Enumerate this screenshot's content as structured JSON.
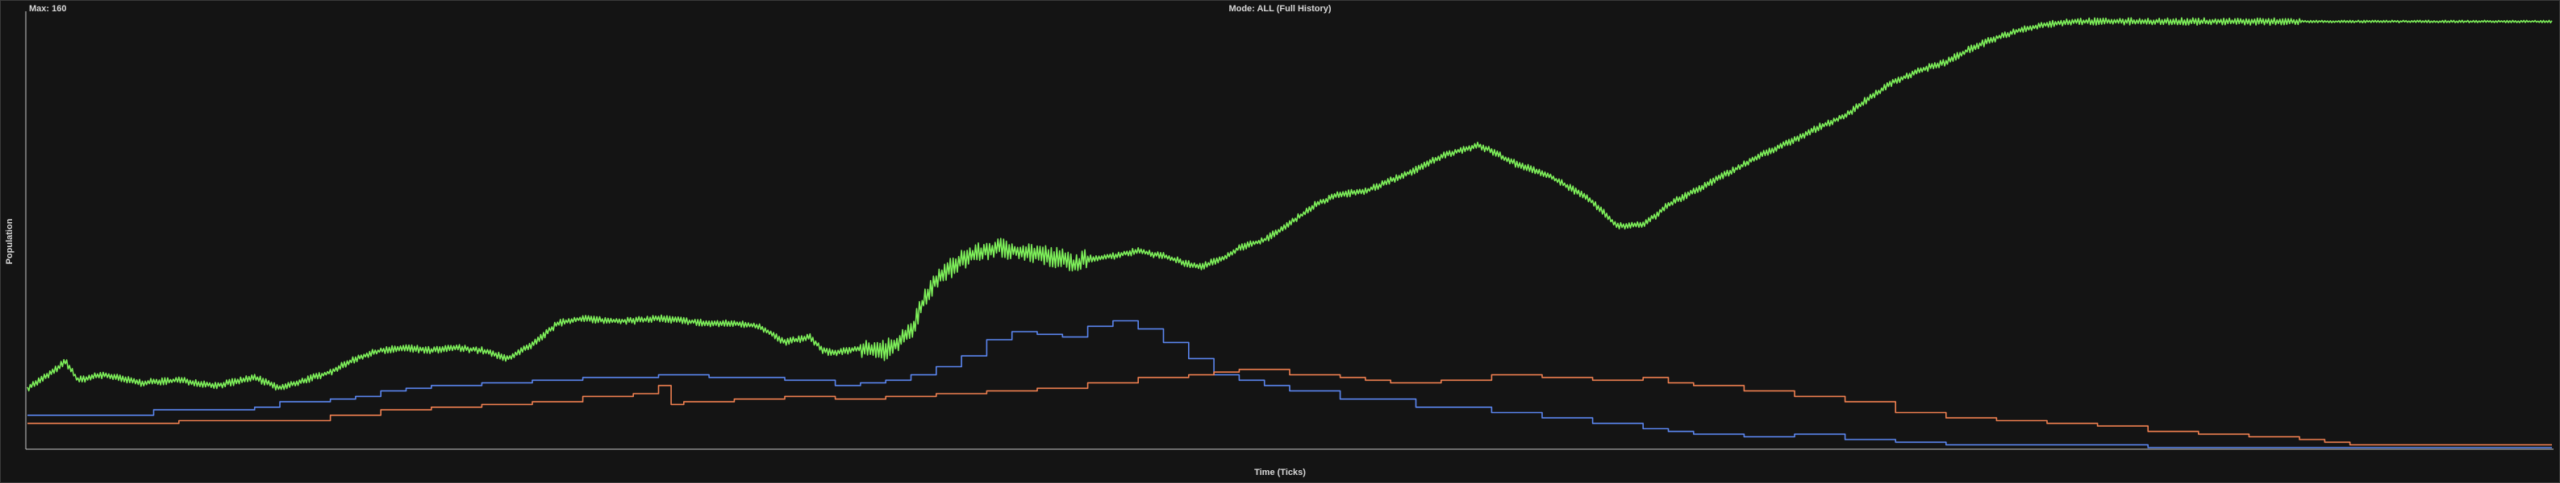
{
  "header": {
    "max_label": "Max: 160",
    "mode_label": "Mode: ALL (Full History)"
  },
  "chart_data": {
    "type": "line",
    "title": "",
    "xlabel": "Time (Ticks)",
    "ylabel": "Population",
    "ymax_label": "Max: 160",
    "ylim": [
      0,
      160
    ],
    "grid": false,
    "legend": "none",
    "x_unit": "fraction of full history (0-1)",
    "series": [
      {
        "color": "#7ef05a",
        "style": "jagged",
        "x": [
          0,
          0.01,
          0.015,
          0.02,
          0.03,
          0.045,
          0.06,
          0.075,
          0.085,
          0.09,
          0.1,
          0.11,
          0.12,
          0.13,
          0.14,
          0.15,
          0.16,
          0.17,
          0.18,
          0.19,
          0.2,
          0.205,
          0.21,
          0.22,
          0.23,
          0.24,
          0.25,
          0.26,
          0.27,
          0.28,
          0.29,
          0.3,
          0.31,
          0.315,
          0.32,
          0.33,
          0.34,
          0.35,
          0.355,
          0.36,
          0.37,
          0.38,
          0.385,
          0.39,
          0.4,
          0.41,
          0.415,
          0.42,
          0.43,
          0.44,
          0.45,
          0.46,
          0.465,
          0.47,
          0.475,
          0.48,
          0.49,
          0.5,
          0.51,
          0.52,
          0.53,
          0.54,
          0.55,
          0.56,
          0.57,
          0.575,
          0.58,
          0.59,
          0.6,
          0.61,
          0.62,
          0.63,
          0.64,
          0.645,
          0.65,
          0.66,
          0.67,
          0.68,
          0.69,
          0.7,
          0.71,
          0.72,
          0.73,
          0.74,
          0.75,
          0.76,
          0.77,
          0.78,
          0.79,
          0.8,
          0.81,
          0.82,
          0.83,
          0.84,
          0.85,
          0.86,
          0.87,
          0.88,
          0.89,
          0.9,
          0.91,
          0.92,
          0.93,
          0.94,
          0.95,
          0.96,
          0.97,
          0.98,
          0.99,
          1.0
        ],
        "y": [
          22,
          28,
          32,
          25,
          27,
          24,
          25,
          23,
          25,
          26,
          22,
          25,
          28,
          33,
          36,
          37,
          36,
          37,
          36,
          33,
          38,
          42,
          46,
          48,
          47,
          47,
          48,
          47,
          46,
          46,
          45,
          39,
          41,
          36,
          35,
          37,
          36,
          43,
          54,
          62,
          70,
          73,
          74,
          73,
          72,
          70,
          68,
          70,
          71,
          73,
          71,
          68,
          67,
          69,
          71,
          74,
          77,
          83,
          90,
          94,
          95,
          99,
          103,
          108,
          111,
          112,
          110,
          105,
          102,
          97,
          91,
          82,
          83,
          86,
          90,
          95,
          100,
          105,
          110,
          114,
          119,
          123,
          130,
          136,
          140,
          143,
          148,
          152,
          155,
          157,
          158,
          158,
          158,
          158,
          158,
          158,
          158,
          158,
          158,
          158,
          158,
          158,
          158,
          158,
          158,
          158,
          158,
          158,
          158,
          158
        ]
      },
      {
        "color": "#5b86f0",
        "style": "step",
        "x": [
          0,
          0.03,
          0.05,
          0.07,
          0.09,
          0.1,
          0.12,
          0.13,
          0.14,
          0.15,
          0.16,
          0.18,
          0.2,
          0.22,
          0.25,
          0.27,
          0.3,
          0.32,
          0.33,
          0.34,
          0.35,
          0.36,
          0.37,
          0.38,
          0.39,
          0.4,
          0.41,
          0.42,
          0.43,
          0.44,
          0.45,
          0.46,
          0.47,
          0.48,
          0.49,
          0.5,
          0.52,
          0.55,
          0.58,
          0.6,
          0.62,
          0.64,
          0.65,
          0.66,
          0.68,
          0.7,
          0.72,
          0.74,
          0.76,
          0.78,
          0.8,
          0.82,
          0.84,
          0.86,
          0.9,
          0.92,
          0.95,
          1.0
        ],
        "y": [
          12,
          12,
          14,
          14,
          15,
          17,
          18,
          19,
          21,
          22,
          23,
          24,
          25,
          26,
          27,
          26,
          25,
          23,
          24,
          25,
          27,
          30,
          34,
          40,
          43,
          42,
          41,
          45,
          47,
          44,
          39,
          33,
          27,
          25,
          23,
          21,
          18,
          15,
          13,
          11,
          9,
          7,
          6,
          5,
          4,
          5,
          3,
          2,
          1,
          1,
          1,
          1,
          0,
          0,
          0,
          0,
          0,
          0
        ]
      },
      {
        "color": "#f08050",
        "style": "step",
        "x": [
          0,
          0.04,
          0.06,
          0.1,
          0.12,
          0.14,
          0.16,
          0.18,
          0.2,
          0.22,
          0.24,
          0.25,
          0.255,
          0.26,
          0.28,
          0.3,
          0.32,
          0.34,
          0.36,
          0.38,
          0.4,
          0.42,
          0.44,
          0.46,
          0.47,
          0.48,
          0.5,
          0.52,
          0.53,
          0.54,
          0.56,
          0.58,
          0.6,
          0.62,
          0.64,
          0.65,
          0.66,
          0.68,
          0.7,
          0.72,
          0.74,
          0.76,
          0.78,
          0.8,
          0.82,
          0.84,
          0.86,
          0.88,
          0.9,
          0.91,
          0.92,
          1.0
        ],
        "y": [
          9,
          9,
          10,
          10,
          12,
          14,
          15,
          16,
          17,
          19,
          20,
          23,
          16,
          17,
          18,
          19,
          18,
          19,
          20,
          21,
          22,
          24,
          26,
          27,
          28,
          29,
          27,
          26,
          25,
          24,
          25,
          27,
          26,
          25,
          26,
          24,
          23,
          21,
          19,
          17,
          13,
          11,
          10,
          9,
          8,
          6,
          5,
          4,
          3,
          2,
          1,
          1
        ]
      }
    ]
  }
}
